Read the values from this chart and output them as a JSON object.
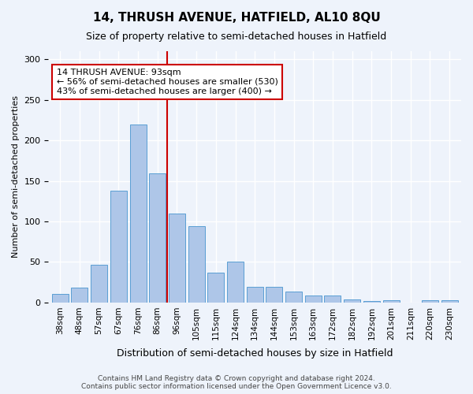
{
  "title1": "14, THRUSH AVENUE, HATFIELD, AL10 8QU",
  "title2": "Size of property relative to semi-detached houses in Hatfield",
  "xlabel": "Distribution of semi-detached houses by size in Hatfield",
  "ylabel": "Number of semi-detached properties",
  "categories": [
    "38sqm",
    "48sqm",
    "57sqm",
    "67sqm",
    "76sqm",
    "86sqm",
    "96sqm",
    "105sqm",
    "115sqm",
    "124sqm",
    "134sqm",
    "144sqm",
    "153sqm",
    "163sqm",
    "172sqm",
    "182sqm",
    "192sqm",
    "201sqm",
    "211sqm",
    "220sqm",
    "230sqm"
  ],
  "values": [
    11,
    18,
    47,
    138,
    220,
    159,
    110,
    94,
    37,
    50,
    19,
    19,
    14,
    9,
    9,
    4,
    2,
    3,
    0,
    3,
    3
  ],
  "bar_color": "#aec6e8",
  "bar_edge_color": "#5a9fd4",
  "background_color": "#eef3fb",
  "grid_color": "#ffffff",
  "vline_x": 5.5,
  "vline_color": "#cc0000",
  "annotation_title": "14 THRUSH AVENUE: 93sqm",
  "annotation_line1": "← 56% of semi-detached houses are smaller (530)",
  "annotation_line2": "43% of semi-detached houses are larger (400) →",
  "annotation_box_color": "#ffffff",
  "annotation_box_edge": "#cc0000",
  "footer1": "Contains HM Land Registry data © Crown copyright and database right 2024.",
  "footer2": "Contains public sector information licensed under the Open Government Licence v3.0.",
  "ylim": [
    0,
    310
  ],
  "yticks": [
    0,
    50,
    100,
    150,
    200,
    250,
    300
  ]
}
